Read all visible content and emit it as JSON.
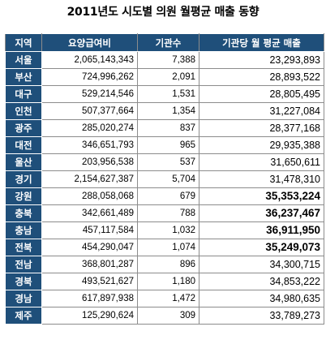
{
  "title": "2011년도 시도별 의원 월평균 매출 동향",
  "columns": [
    "지역",
    "요양급여비",
    "기관수",
    "기관당 월 평균 매출"
  ],
  "rows": [
    {
      "region": "서울",
      "benefit": "2,065,143,343",
      "count": "7,388",
      "avg": "23,293,893",
      "highlight": false
    },
    {
      "region": "부산",
      "benefit": "724,996,262",
      "count": "2,091",
      "avg": "28,893,522",
      "highlight": false
    },
    {
      "region": "대구",
      "benefit": "529,214,546",
      "count": "1,531",
      "avg": "28,805,495",
      "highlight": false
    },
    {
      "region": "인천",
      "benefit": "507,377,664",
      "count": "1,354",
      "avg": "31,227,084",
      "highlight": false
    },
    {
      "region": "광주",
      "benefit": "285,020,274",
      "count": "837",
      "avg": "28,377,168",
      "highlight": false
    },
    {
      "region": "대전",
      "benefit": "346,651,793",
      "count": "965",
      "avg": "29,935,388",
      "highlight": false
    },
    {
      "region": "울산",
      "benefit": "203,956,538",
      "count": "537",
      "avg": "31,650,611",
      "highlight": false
    },
    {
      "region": "경기",
      "benefit": "2,154,627,387",
      "count": "5,704",
      "avg": "31,478,310",
      "highlight": false
    },
    {
      "region": "강원",
      "benefit": "288,058,068",
      "count": "679",
      "avg": "35,353,224",
      "highlight": true
    },
    {
      "region": "충북",
      "benefit": "342,661,489",
      "count": "788",
      "avg": "36,237,467",
      "highlight": true
    },
    {
      "region": "충남",
      "benefit": "457,117,584",
      "count": "1,032",
      "avg": "36,911,950",
      "highlight": true
    },
    {
      "region": "전북",
      "benefit": "454,290,047",
      "count": "1,074",
      "avg": "35,249,073",
      "highlight": true
    },
    {
      "region": "전남",
      "benefit": "368,801,287",
      "count": "896",
      "avg": "34,300,715",
      "highlight": false
    },
    {
      "region": "경북",
      "benefit": "493,521,627",
      "count": "1,180",
      "avg": "34,853,222",
      "highlight": false
    },
    {
      "region": "경남",
      "benefit": "617,897,938",
      "count": "1,472",
      "avg": "34,980,635",
      "highlight": false
    },
    {
      "region": "제주",
      "benefit": "125,290,624",
      "count": "309",
      "avg": "33,789,273",
      "highlight": false
    }
  ],
  "colors": {
    "header_bg": "#1f4f7a",
    "header_text": "#ffffff",
    "border": "#8c8c8c"
  }
}
